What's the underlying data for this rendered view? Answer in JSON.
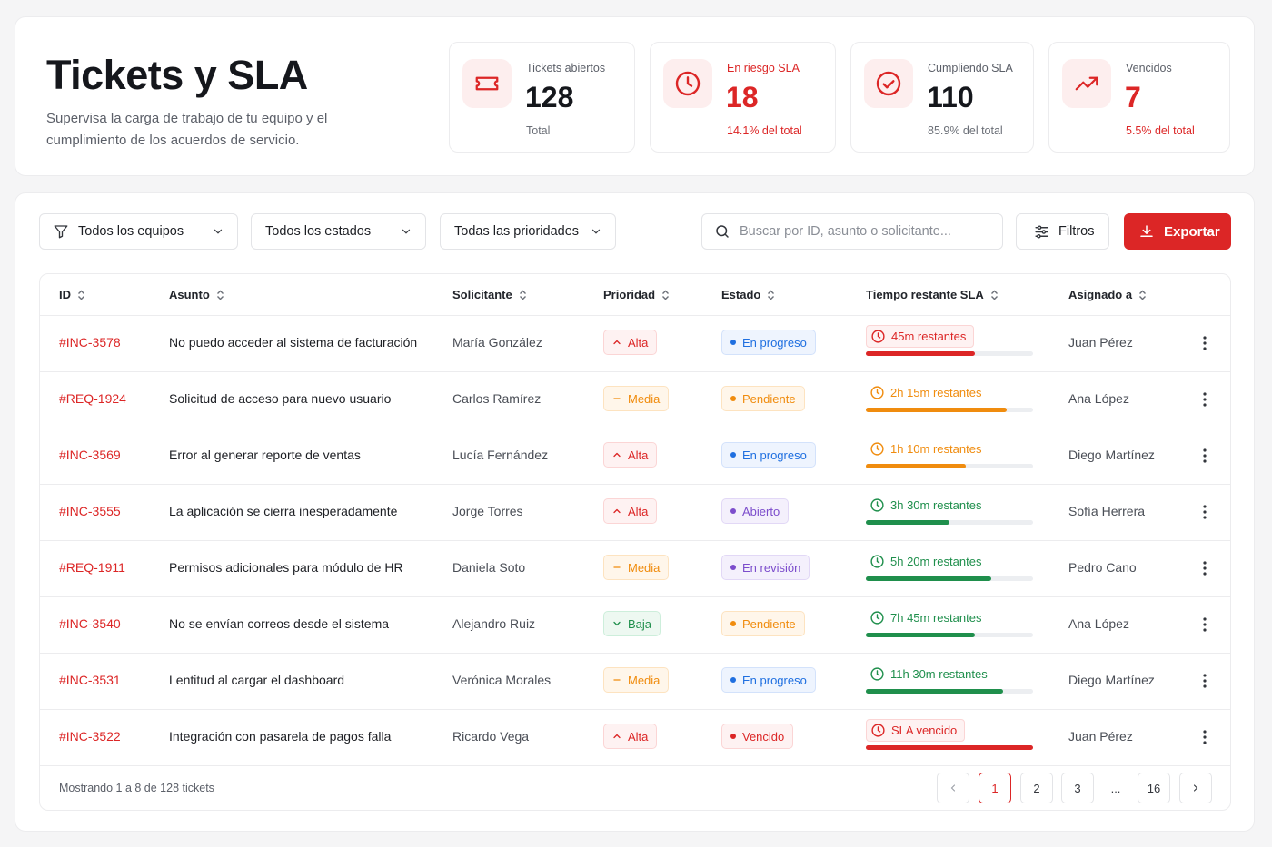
{
  "header": {
    "title": "Tickets y SLA",
    "subtitle": "Supervisa la carga de trabajo de tu equipo y el cumplimiento de los acuerdos de servicio."
  },
  "stats": [
    {
      "label": "Tickets abiertos",
      "value": "128",
      "sub": "Total",
      "icon": "ticket-icon"
    },
    {
      "label": "En riesgo SLA",
      "value": "18",
      "sub": "14.1% del total",
      "icon": "clock-icon"
    },
    {
      "label": "Cumpliendo SLA",
      "value": "110",
      "sub": "85.9% del total",
      "icon": "check-circle-icon"
    },
    {
      "label": "Vencidos",
      "value": "7",
      "sub": "5.5% del total",
      "icon": "trending-up-icon"
    }
  ],
  "filters": {
    "team": "Todos los equipos",
    "status": "Todos los estados",
    "priority": "Todas las prioridades",
    "search_placeholder": "Buscar por ID, asunto o solicitante...",
    "filters_label": "Filtros",
    "export_label": "Exportar"
  },
  "table": {
    "columns": [
      "ID",
      "Asunto",
      "Solicitante",
      "Prioridad",
      "Estado",
      "Tiempo restante SLA",
      "Asignado a"
    ],
    "rows": [
      {
        "id": "#INC-3578",
        "subject": "No puedo acceder al sistema de facturación",
        "requester": "María González",
        "priority": "Alta",
        "status": "En progreso",
        "sla": "45m restantes",
        "sla_level": "red",
        "sla_progress": 0.65,
        "assignee": "Juan Pérez"
      },
      {
        "id": "#REQ-1924",
        "subject": "Solicitud de acceso para nuevo usuario",
        "requester": "Carlos Ramírez",
        "priority": "Media",
        "status": "Pendiente",
        "sla": "2h 15m restantes",
        "sla_level": "orange",
        "sla_progress": 0.84,
        "assignee": "Ana López"
      },
      {
        "id": "#INC-3569",
        "subject": "Error al generar reporte de ventas",
        "requester": "Lucía Fernández",
        "priority": "Alta",
        "status": "En progreso",
        "sla": "1h 10m restantes",
        "sla_level": "orange",
        "sla_progress": 0.6,
        "assignee": "Diego Martínez"
      },
      {
        "id": "#INC-3555",
        "subject": "La aplicación se cierra inesperadamente",
        "requester": "Jorge Torres",
        "priority": "Alta",
        "status": "Abierto",
        "sla": "3h 30m restantes",
        "sla_level": "green",
        "sla_progress": 0.5,
        "assignee": "Sofía Herrera"
      },
      {
        "id": "#REQ-1911",
        "subject": "Permisos adicionales para módulo de HR",
        "requester": "Daniela Soto",
        "priority": "Media",
        "status": "En revisión",
        "sla": "5h 20m restantes",
        "sla_level": "green",
        "sla_progress": 0.75,
        "assignee": "Pedro Cano"
      },
      {
        "id": "#INC-3540",
        "subject": "No se envían correos desde el sistema",
        "requester": "Alejandro Ruiz",
        "priority": "Baja",
        "status": "Pendiente",
        "sla": "7h 45m restantes",
        "sla_level": "green",
        "sla_progress": 0.65,
        "assignee": "Ana López"
      },
      {
        "id": "#INC-3531",
        "subject": "Lentitud al cargar el dashboard",
        "requester": "Verónica Morales",
        "priority": "Media",
        "status": "En progreso",
        "sla": "11h 30m restantes",
        "sla_level": "green",
        "sla_progress": 0.82,
        "assignee": "Diego Martínez"
      },
      {
        "id": "#INC-3522",
        "subject": "Integración con pasarela de pagos falla",
        "requester": "Ricardo Vega",
        "priority": "Alta",
        "status": "Vencido",
        "sla": "SLA vencido",
        "sla_level": "red",
        "sla_progress": 1.0,
        "assignee": "Juan Pérez"
      }
    ]
  },
  "pagination": {
    "summary": "Mostrando 1 a 8 de 128 tickets",
    "pages": [
      "1",
      "2",
      "3",
      "...",
      "16"
    ],
    "current": "1"
  },
  "colors": {
    "accent": "#dc2626",
    "orange": "#f08c0e",
    "green": "#1f8f4c",
    "blue": "#1f6fe0",
    "purple": "#7c4dcc"
  }
}
